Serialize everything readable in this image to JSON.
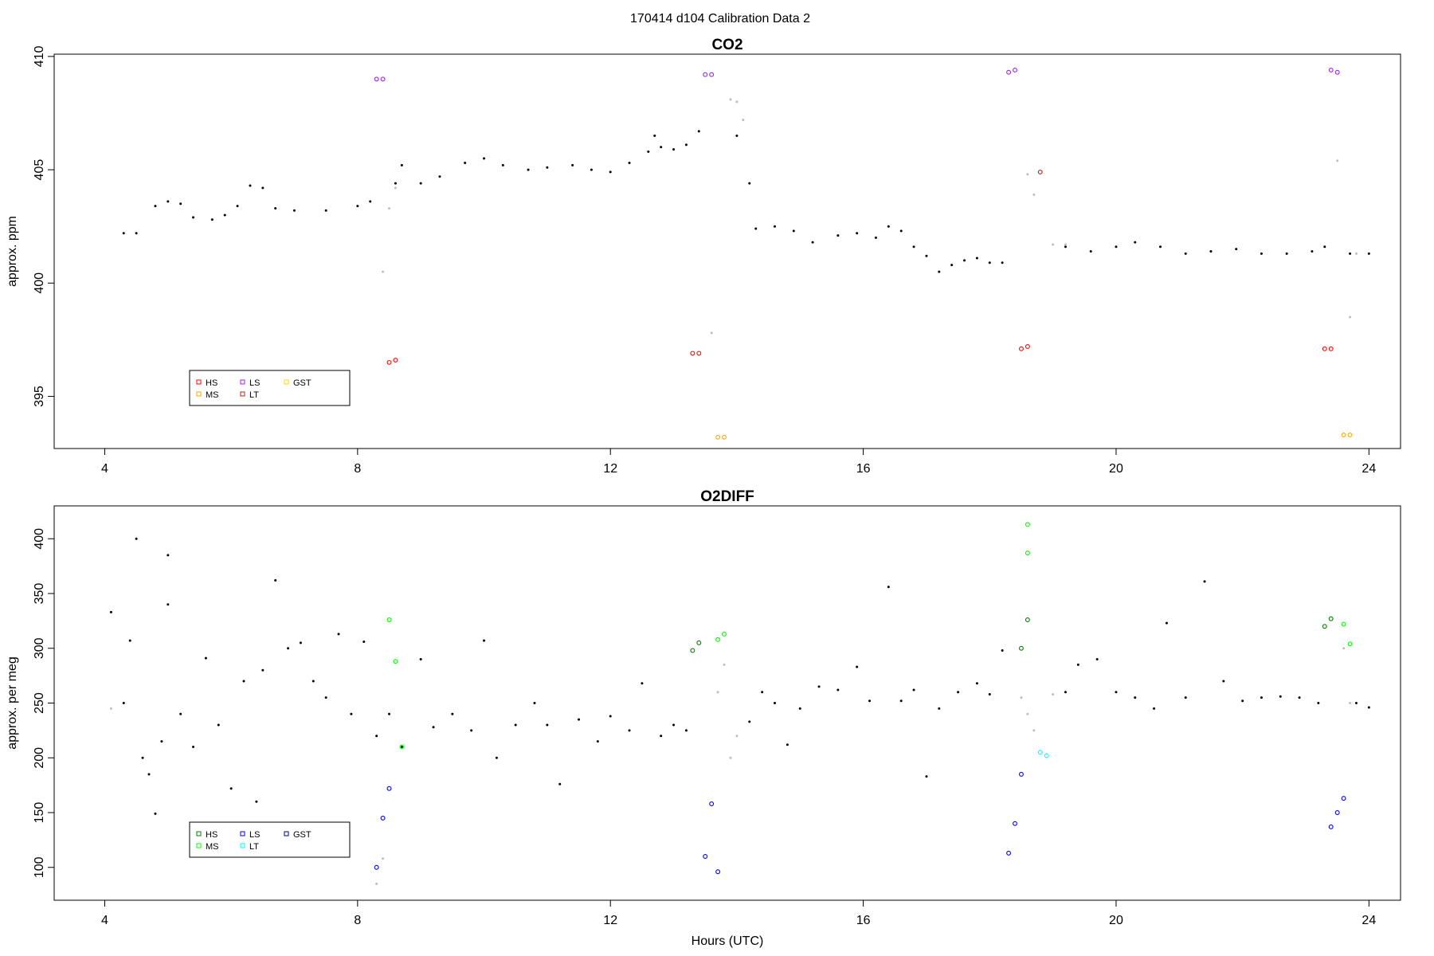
{
  "figure_title": "170414   d104   Calibration Data 2",
  "chart_data": [
    {
      "type": "scatter",
      "title": "CO2",
      "xlabel": "",
      "ylabel": "approx. ppm",
      "xlim": [
        3.2,
        24.5
      ],
      "ylim": [
        392.7,
        410.1
      ],
      "xticks": [
        4,
        8,
        12,
        16,
        20,
        24
      ],
      "yticks": [
        395,
        400,
        405,
        410
      ],
      "legend": {
        "position": "bottom-left",
        "entries": [
          {
            "name": "HS",
            "color": "#ff0000"
          },
          {
            "name": "MS",
            "color": "#ffa500"
          },
          {
            "name": "LS",
            "color": "#a020f0"
          },
          {
            "name": "LT",
            "color": "#b22222"
          },
          {
            "name": "GST",
            "color": "#ffd700"
          }
        ]
      },
      "series": [
        {
          "name": "sample",
          "color": "#000000",
          "points": [
            [
              4.3,
              402.2
            ],
            [
              4.5,
              402.2
            ],
            [
              4.8,
              403.4
            ],
            [
              5.0,
              403.6
            ],
            [
              5.2,
              403.5
            ],
            [
              5.4,
              402.9
            ],
            [
              5.7,
              402.8
            ],
            [
              5.9,
              403.0
            ],
            [
              6.1,
              403.4
            ],
            [
              6.3,
              404.3
            ],
            [
              6.5,
              404.2
            ],
            [
              6.7,
              403.3
            ],
            [
              7.0,
              403.2
            ],
            [
              7.5,
              403.2
            ],
            [
              8.0,
              403.4
            ],
            [
              8.2,
              403.6
            ],
            [
              8.6,
              404.4
            ],
            [
              8.7,
              405.2
            ],
            [
              9.0,
              404.4
            ],
            [
              9.3,
              404.7
            ],
            [
              9.7,
              405.3
            ],
            [
              10.0,
              405.5
            ],
            [
              10.3,
              405.2
            ],
            [
              10.7,
              405.0
            ],
            [
              11.0,
              405.1
            ],
            [
              11.4,
              405.2
            ],
            [
              11.7,
              405.0
            ],
            [
              12.0,
              404.9
            ],
            [
              12.3,
              405.3
            ],
            [
              12.6,
              405.8
            ],
            [
              12.7,
              406.5
            ],
            [
              12.8,
              406.0
            ],
            [
              13.0,
              405.9
            ],
            [
              13.2,
              406.1
            ],
            [
              13.4,
              406.7
            ],
            [
              14.0,
              406.5
            ],
            [
              14.2,
              404.4
            ],
            [
              14.3,
              402.4
            ],
            [
              14.6,
              402.5
            ],
            [
              14.9,
              402.3
            ],
            [
              15.2,
              401.8
            ],
            [
              15.6,
              402.1
            ],
            [
              15.9,
              402.2
            ],
            [
              16.2,
              402.0
            ],
            [
              16.4,
              402.5
            ],
            [
              16.6,
              402.3
            ],
            [
              16.8,
              401.6
            ],
            [
              17.0,
              401.2
            ],
            [
              17.2,
              400.5
            ],
            [
              17.4,
              400.8
            ],
            [
              17.6,
              401.0
            ],
            [
              17.8,
              401.1
            ],
            [
              18.0,
              400.9
            ],
            [
              18.2,
              400.9
            ],
            [
              19.2,
              401.6
            ],
            [
              19.6,
              401.4
            ],
            [
              20.0,
              401.6
            ],
            [
              20.3,
              401.8
            ],
            [
              20.7,
              401.6
            ],
            [
              21.1,
              401.3
            ],
            [
              21.5,
              401.4
            ],
            [
              21.9,
              401.5
            ],
            [
              22.3,
              401.3
            ],
            [
              22.7,
              401.3
            ],
            [
              23.1,
              401.4
            ],
            [
              23.3,
              401.6
            ],
            [
              23.7,
              401.3
            ],
            [
              24.0,
              401.3
            ]
          ]
        },
        {
          "name": "excluded",
          "color": "#bdbdbd",
          "points": [
            [
              8.4,
              400.5
            ],
            [
              8.5,
              403.3
            ],
            [
              8.6,
              404.2
            ],
            [
              13.6,
              397.8
            ],
            [
              13.9,
              408.1
            ],
            [
              14.0,
              408.0
            ],
            [
              14.1,
              407.2
            ],
            [
              18.6,
              404.8
            ],
            [
              18.7,
              403.9
            ],
            [
              19.0,
              401.7
            ],
            [
              19.2,
              401.7
            ],
            [
              23.5,
              405.4
            ],
            [
              23.7,
              398.5
            ],
            [
              23.8,
              401.3
            ]
          ]
        },
        {
          "name": "HS",
          "color": "#ff0000",
          "points": [
            [
              8.5,
              396.5
            ],
            [
              8.6,
              396.6
            ],
            [
              13.3,
              396.9
            ],
            [
              13.4,
              396.9
            ],
            [
              18.5,
              397.1
            ],
            [
              18.6,
              397.2
            ],
            [
              23.3,
              397.1
            ],
            [
              23.4,
              397.1
            ]
          ]
        },
        {
          "name": "MS",
          "color": "#ffa500",
          "points": [
            [
              13.7,
              393.2
            ],
            [
              13.8,
              393.2
            ],
            [
              23.6,
              393.3
            ],
            [
              23.7,
              393.3
            ]
          ]
        },
        {
          "name": "LS",
          "color": "#a020f0",
          "points": [
            [
              8.3,
              409.0
            ],
            [
              8.4,
              409.0
            ],
            [
              13.5,
              409.2
            ],
            [
              13.6,
              409.2
            ],
            [
              18.3,
              409.3
            ],
            [
              18.4,
              409.4
            ],
            [
              23.4,
              409.4
            ],
            [
              23.5,
              409.3
            ]
          ]
        },
        {
          "name": "LT",
          "color": "#b22222",
          "points": [
            [
              18.8,
              404.9
            ]
          ]
        }
      ]
    },
    {
      "type": "scatter",
      "title": "O2DIFF",
      "xlabel": "Hours (UTC)",
      "ylabel": "approx. per meg",
      "xlim": [
        3.2,
        24.5
      ],
      "ylim": [
        70,
        430
      ],
      "xticks": [
        4,
        8,
        12,
        16,
        20,
        24
      ],
      "yticks": [
        100,
        150,
        200,
        250,
        300,
        350,
        400
      ],
      "legend": {
        "position": "bottom-left",
        "entries": [
          {
            "name": "HS",
            "color": "#008000"
          },
          {
            "name": "MS",
            "color": "#00ff00"
          },
          {
            "name": "LS",
            "color": "#0000ff"
          },
          {
            "name": "LT",
            "color": "#00ffff"
          },
          {
            "name": "GST",
            "color": "#00008b"
          }
        ]
      },
      "series": [
        {
          "name": "sample",
          "color": "#000000",
          "points": [
            [
              4.1,
              333
            ],
            [
              4.3,
              250
            ],
            [
              4.4,
              307
            ],
            [
              4.5,
              400
            ],
            [
              4.6,
              200
            ],
            [
              4.7,
              185
            ],
            [
              4.8,
              149
            ],
            [
              4.9,
              215
            ],
            [
              5.0,
              340
            ],
            [
              5.0,
              385
            ],
            [
              5.2,
              240
            ],
            [
              5.4,
              210
            ],
            [
              5.6,
              291
            ],
            [
              5.8,
              230
            ],
            [
              6.0,
              172
            ],
            [
              6.2,
              270
            ],
            [
              6.4,
              160
            ],
            [
              6.5,
              280
            ],
            [
              6.7,
              362
            ],
            [
              6.9,
              300
            ],
            [
              7.1,
              305
            ],
            [
              7.3,
              270
            ],
            [
              7.5,
              255
            ],
            [
              7.7,
              313
            ],
            [
              7.9,
              240
            ],
            [
              8.1,
              306
            ],
            [
              8.3,
              220
            ],
            [
              8.5,
              240
            ],
            [
              8.7,
              210
            ],
            [
              9.0,
              290
            ],
            [
              9.2,
              228
            ],
            [
              9.5,
              240
            ],
            [
              9.8,
              225
            ],
            [
              10.0,
              307
            ],
            [
              10.2,
              200
            ],
            [
              10.5,
              230
            ],
            [
              10.8,
              250
            ],
            [
              11.0,
              230
            ],
            [
              11.2,
              176
            ],
            [
              11.5,
              235
            ],
            [
              11.8,
              215
            ],
            [
              12.0,
              238
            ],
            [
              12.3,
              225
            ],
            [
              12.5,
              268
            ],
            [
              12.8,
              220
            ],
            [
              13.0,
              230
            ],
            [
              13.2,
              225
            ],
            [
              14.2,
              233
            ],
            [
              14.4,
              260
            ],
            [
              14.6,
              250
            ],
            [
              14.8,
              212
            ],
            [
              15.0,
              245
            ],
            [
              15.3,
              265
            ],
            [
              15.6,
              262
            ],
            [
              15.9,
              283
            ],
            [
              16.1,
              252
            ],
            [
              16.4,
              356
            ],
            [
              16.6,
              252
            ],
            [
              16.8,
              262
            ],
            [
              17.0,
              183
            ],
            [
              17.2,
              245
            ],
            [
              17.5,
              260
            ],
            [
              17.8,
              268
            ],
            [
              18.0,
              258
            ],
            [
              18.2,
              298
            ],
            [
              19.2,
              260
            ],
            [
              19.4,
              285
            ],
            [
              19.7,
              290
            ],
            [
              20.0,
              260
            ],
            [
              20.3,
              255
            ],
            [
              20.6,
              245
            ],
            [
              20.8,
              323
            ],
            [
              21.1,
              255
            ],
            [
              21.4,
              361
            ],
            [
              21.7,
              270
            ],
            [
              22.0,
              252
            ],
            [
              22.3,
              255
            ],
            [
              22.6,
              256
            ],
            [
              22.9,
              255
            ],
            [
              23.2,
              250
            ],
            [
              23.8,
              250
            ],
            [
              24.0,
              246
            ]
          ]
        },
        {
          "name": "excluded",
          "color": "#bdbdbd",
          "points": [
            [
              4.1,
              245
            ],
            [
              8.3,
              85
            ],
            [
              8.4,
              108
            ],
            [
              13.7,
              260
            ],
            [
              13.8,
              285
            ],
            [
              13.9,
              200
            ],
            [
              14.0,
              220
            ],
            [
              18.5,
              255
            ],
            [
              18.6,
              240
            ],
            [
              18.7,
              225
            ],
            [
              19.0,
              258
            ],
            [
              23.6,
              300
            ],
            [
              23.7,
              250
            ]
          ]
        },
        {
          "name": "HS",
          "color": "#008000",
          "points": [
            [
              13.3,
              298
            ],
            [
              13.4,
              305
            ],
            [
              18.5,
              300
            ],
            [
              18.6,
              326
            ],
            [
              23.3,
              320
            ],
            [
              23.4,
              327
            ]
          ]
        },
        {
          "name": "MS",
          "color": "#00ff00",
          "points": [
            [
              8.5,
              326
            ],
            [
              8.6,
              288
            ],
            [
              8.7,
              210
            ],
            [
              13.7,
              308
            ],
            [
              13.8,
              313
            ],
            [
              18.6,
              413
            ],
            [
              18.6,
              387
            ],
            [
              23.6,
              322
            ],
            [
              23.7,
              304
            ]
          ]
        },
        {
          "name": "LS",
          "color": "#0000ff",
          "points": [
            [
              8.3,
              100
            ],
            [
              8.4,
              145
            ],
            [
              8.5,
              172
            ],
            [
              13.5,
              110
            ],
            [
              13.6,
              158
            ],
            [
              13.7,
              96
            ],
            [
              18.3,
              113
            ],
            [
              18.4,
              140
            ],
            [
              18.5,
              185
            ],
            [
              23.4,
              137
            ],
            [
              23.5,
              150
            ],
            [
              23.6,
              163
            ]
          ]
        },
        {
          "name": "LT",
          "color": "#00ffff",
          "points": [
            [
              18.8,
              205
            ],
            [
              18.9,
              202
            ]
          ]
        }
      ]
    }
  ]
}
